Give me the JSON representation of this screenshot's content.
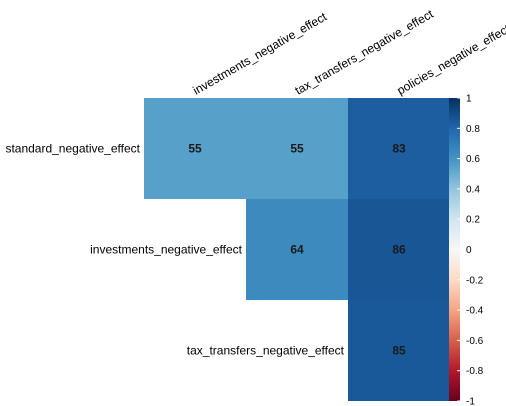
{
  "chart_data": {
    "type": "heatmap",
    "rows": [
      "standard_negative_effect",
      "investments_negative_effect",
      "tax_transfers_negative_effect"
    ],
    "columns": [
      "investments_negative_effect",
      "tax_transfers_negative_effect",
      "policies_negative_effect"
    ],
    "values": [
      [
        55,
        55,
        83
      ],
      [
        null,
        64,
        86
      ],
      [
        null,
        null,
        85
      ]
    ],
    "layout": "upper-triangular",
    "colorbar": {
      "range": [
        -1,
        1
      ],
      "ticks": [
        "1",
        "0.8",
        "0.6",
        "0.4",
        "0.2",
        "0",
        "-0.2",
        "-0.4",
        "-0.6",
        "-0.8",
        "-1"
      ],
      "palette": [
        "#67001f",
        "#b2182b",
        "#d6604d",
        "#f4a582",
        "#fddbc7",
        "#f7f7f7",
        "#d1e5f0",
        "#92c5de",
        "#4393c3",
        "#2166ac",
        "#053061"
      ],
      "placement": "right"
    }
  }
}
